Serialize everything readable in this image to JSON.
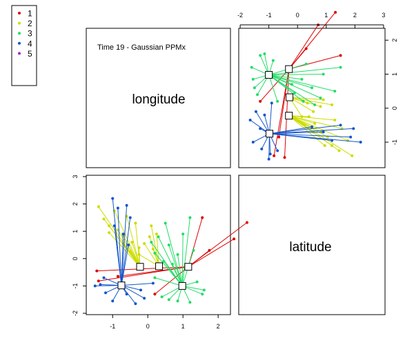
{
  "chart_data": {
    "type": "scatter",
    "title": "Time 19 - Gaussian PPMx",
    "variables": [
      "longitude",
      "latitude"
    ],
    "legend": {
      "placement": "top-left",
      "entries": [
        {
          "label": "1",
          "color": "#dd0000"
        },
        {
          "label": "2",
          "color": "#ccdd00"
        },
        {
          "label": "3",
          "color": "#22dd66"
        },
        {
          "label": "4",
          "color": "#1155cc"
        },
        {
          "label": "5",
          "color": "#aa22cc"
        }
      ]
    },
    "longitude_axis": {
      "ticks": [
        -1,
        0,
        1,
        2
      ],
      "tick_labels": [
        "-1",
        "0",
        "1",
        "2"
      ],
      "range": [
        -1.75,
        2.35
      ]
    },
    "latitude_axis": {
      "ticks": [
        -2,
        -1,
        0,
        1,
        2,
        3
      ],
      "tick_labels": [
        "-2",
        "-1",
        "0",
        "1",
        "2",
        "3"
      ],
      "range": [
        -2.05,
        3.05
      ]
    },
    "cluster_centers": [
      {
        "cluster": "1",
        "longitude": 1.15,
        "latitude": -0.3
      },
      {
        "cluster": "2",
        "longitude": -0.22,
        "latitude": -0.3
      },
      {
        "cluster": "2",
        "longitude": 0.32,
        "latitude": -0.28
      },
      {
        "cluster": "3",
        "longitude": 0.98,
        "latitude": -1.0
      },
      {
        "cluster": "4",
        "longitude": -0.75,
        "latitude": -0.98
      }
    ],
    "series": [
      {
        "name": "1",
        "color": "#dd0000",
        "center": 0,
        "points": [
          [
            2.82,
            1.32
          ],
          [
            2.45,
            0.72
          ],
          [
            1.75,
            0.3
          ],
          [
            1.55,
            1.5
          ],
          [
            -1.45,
            -0.45
          ],
          [
            -1.4,
            -0.82
          ],
          [
            -0.85,
            -0.65
          ],
          [
            0.2,
            -1.3
          ]
        ]
      },
      {
        "name": "2",
        "color": "#ccdd00",
        "center": 1,
        "points": [
          [
            -1.4,
            1.9
          ],
          [
            -1.25,
            1.45
          ],
          [
            -1.1,
            1.2
          ],
          [
            -0.95,
            1.75
          ],
          [
            -0.85,
            1.05
          ],
          [
            -0.7,
            0.85
          ],
          [
            -0.6,
            1.55
          ],
          [
            -0.45,
            0.6
          ],
          [
            -0.35,
            1.3
          ],
          [
            -0.25,
            0.4
          ],
          [
            -0.5,
            0.25
          ],
          [
            -0.7,
            0.55
          ],
          [
            -1.1,
            0.95
          ]
        ]
      },
      {
        "name": "2",
        "color": "#ccdd00",
        "center": 2,
        "points": [
          [
            0.1,
            1.2
          ],
          [
            0.05,
            0.8
          ],
          [
            -0.1,
            0.55
          ],
          [
            0.15,
            0.35
          ],
          [
            -0.25,
            0.15
          ],
          [
            0.25,
            0.9
          ]
        ]
      },
      {
        "name": "3",
        "color": "#22dd66",
        "center": 3,
        "points": [
          [
            1.2,
            1.5
          ],
          [
            1.0,
            0.9
          ],
          [
            0.5,
            1.3
          ],
          [
            0.3,
            0.8
          ],
          [
            0.2,
            0.2
          ],
          [
            0.6,
            0.5
          ],
          [
            0.85,
            0.15
          ],
          [
            1.3,
            0.3
          ],
          [
            0.1,
            0.6
          ],
          [
            0.45,
            -0.1
          ],
          [
            0.7,
            -0.2
          ],
          [
            1.55,
            -1.3
          ],
          [
            1.6,
            -1.15
          ],
          [
            1.2,
            -1.6
          ],
          [
            0.85,
            -1.55
          ],
          [
            0.6,
            -1.5
          ],
          [
            0.4,
            -1.4
          ],
          [
            0.2,
            -0.7
          ],
          [
            1.4,
            -0.85
          ]
        ]
      },
      {
        "name": "4",
        "color": "#1155cc",
        "center": 4,
        "points": [
          [
            -1.0,
            2.2
          ],
          [
            -0.85,
            1.85
          ],
          [
            -0.6,
            1.95
          ],
          [
            -0.5,
            1.5
          ],
          [
            -0.95,
            1.2
          ],
          [
            -0.7,
            0.9
          ],
          [
            -0.55,
            0.5
          ],
          [
            -1.25,
            -0.7
          ],
          [
            -1.5,
            -1.0
          ],
          [
            -1.2,
            -1.25
          ],
          [
            -1.0,
            -1.55
          ],
          [
            -0.6,
            -1.3
          ],
          [
            -0.35,
            -1.65
          ],
          [
            -0.2,
            -1.15
          ],
          [
            0.15,
            -0.9
          ],
          [
            -0.1,
            -1.45
          ],
          [
            -1.35,
            -0.95
          ]
        ]
      }
    ]
  }
}
